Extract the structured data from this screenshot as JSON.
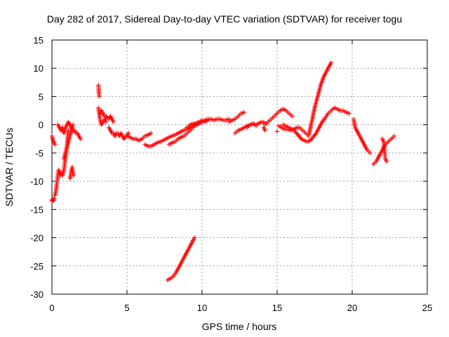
{
  "chart_data": {
    "type": "scatter",
    "title": "Day 282 of 2017, Sidereal Day-to-day VTEC variation (SDTVAR) for receiver togu",
    "xlabel": "GPS time / hours",
    "ylabel": "SDTVAR / TECUs",
    "xlim": [
      0,
      25
    ],
    "ylim": [
      -30,
      15
    ],
    "xticks": [
      0,
      5,
      10,
      15,
      20,
      25
    ],
    "yticks": [
      -30,
      -25,
      -20,
      -15,
      -10,
      -5,
      0,
      5,
      10,
      15
    ],
    "grid": true,
    "marker": "+",
    "color": "#ff0000",
    "series": [
      {
        "name": "SDTVAR",
        "segments": [
          {
            "x": [
              0.0,
              0.1,
              0.2
            ],
            "y": [
              -2.0,
              -3.0,
              -3.5
            ]
          },
          {
            "x": [
              0.0,
              0.05,
              0.1,
              0.15
            ],
            "y": [
              -13.5,
              -13.2,
              -13.5,
              -13.0
            ]
          },
          {
            "x": [
              0.2,
              0.25,
              0.3,
              0.35,
              0.4,
              0.45,
              0.5,
              0.55,
              0.6,
              0.7,
              0.8,
              0.9,
              1.0,
              1.05,
              1.1
            ],
            "y": [
              -12.5,
              -12.0,
              -11.0,
              -10.0,
              -9.0,
              -8.0,
              -8.5,
              -9.0,
              -8.5,
              -9.0,
              -8.0,
              -6.0,
              -4.0,
              -2.0,
              -1.0
            ]
          },
          {
            "x": [
              0.4,
              0.5,
              0.6,
              0.7,
              0.8,
              0.9,
              1.0,
              1.1,
              1.2,
              1.3,
              1.4
            ],
            "y": [
              0.0,
              -0.5,
              -1.0,
              -0.5,
              -1.5,
              -0.5,
              0.0,
              0.5,
              0.0,
              -0.5,
              -1.0
            ]
          },
          {
            "x": [
              0.8,
              0.9,
              1.0,
              1.1,
              1.2,
              1.3,
              1.4
            ],
            "y": [
              -6.0,
              -5.0,
              -4.0,
              -3.0,
              -2.0,
              -1.0,
              0.0
            ]
          },
          {
            "x": [
              1.2,
              1.25,
              1.3,
              1.35,
              1.4,
              1.45
            ],
            "y": [
              -9.5,
              -9.0,
              -8.0,
              -7.5,
              -8.5,
              -9.0
            ]
          },
          {
            "x": [
              1.3,
              1.4,
              1.5,
              1.6,
              1.7,
              1.8,
              1.9
            ],
            "y": [
              -0.5,
              -1.0,
              -1.0,
              -1.5,
              -1.5,
              -2.0,
              -2.5
            ]
          },
          {
            "x": [
              3.1,
              3.12,
              3.15
            ],
            "y": [
              7.0,
              6.0,
              5.0
            ]
          },
          {
            "x": [
              3.1,
              3.2,
              3.3,
              3.4,
              3.5,
              3.6
            ],
            "y": [
              3.0,
              1.0,
              0.0,
              0.5,
              1.0,
              0.5
            ]
          },
          {
            "x": [
              3.2,
              3.3,
              3.4,
              3.5,
              3.6,
              3.7,
              3.8,
              3.9,
              4.0,
              4.1
            ],
            "y": [
              2.0,
              2.5,
              2.0,
              1.5,
              1.5,
              1.2,
              1.0,
              1.5,
              1.0,
              0.5
            ]
          },
          {
            "x": [
              3.8,
              3.9,
              4.0,
              4.1,
              4.2,
              4.3,
              4.4,
              4.5,
              4.6,
              4.7,
              4.8,
              4.9,
              5.0,
              5.1
            ],
            "y": [
              -0.5,
              -1.0,
              -1.5,
              -1.5,
              -2.0,
              -1.5,
              -1.5,
              -2.0,
              -1.5,
              -2.0,
              -2.5,
              -2.0,
              -2.0,
              -1.5
            ]
          },
          {
            "x": [
              5.0,
              5.2,
              5.4,
              5.6,
              5.8,
              6.0,
              6.2,
              6.4,
              6.6
            ],
            "y": [
              -2.0,
              -2.2,
              -2.5,
              -2.5,
              -2.8,
              -2.5,
              -2.0,
              -1.8,
              -1.5
            ]
          },
          {
            "x": [
              6.2,
              6.4,
              6.6,
              6.8,
              7.0,
              7.2,
              7.4,
              7.6,
              7.8,
              8.0,
              8.2,
              8.4,
              8.6,
              8.8,
              9.0,
              9.2,
              9.4,
              9.6
            ],
            "y": [
              -3.5,
              -3.8,
              -3.8,
              -3.5,
              -3.2,
              -3.0,
              -2.8,
              -2.5,
              -2.2,
              -2.0,
              -1.8,
              -1.5,
              -1.2,
              -1.0,
              -0.5,
              0.0,
              0.2,
              0.0
            ]
          },
          {
            "x": [
              7.8,
              8.0,
              8.2,
              8.4,
              8.6,
              8.8,
              9.0,
              9.2,
              9.4
            ],
            "y": [
              -3.5,
              -3.2,
              -3.0,
              -2.5,
              -2.2,
              -2.0,
              -1.5,
              -1.0,
              -0.5
            ]
          },
          {
            "x": [
              7.7,
              7.9,
              8.1,
              8.3,
              8.5,
              8.7,
              8.9,
              9.1,
              9.3,
              9.5
            ],
            "y": [
              -27.5,
              -27.2,
              -26.8,
              -26.0,
              -25.0,
              -24.0,
              -23.0,
              -22.0,
              -21.0,
              -20.0
            ]
          },
          {
            "x": [
              9.0,
              9.2,
              9.4,
              9.6,
              9.8,
              10.0,
              10.2,
              10.4,
              10.6,
              10.8,
              11.0,
              11.2,
              11.4,
              11.6,
              11.8
            ],
            "y": [
              -0.8,
              -0.5,
              -0.3,
              -0.1,
              0.2,
              0.5,
              0.8,
              1.0,
              1.0,
              0.8,
              1.0,
              1.0,
              0.8,
              0.8,
              1.0
            ]
          },
          {
            "x": [
              9.2,
              9.4,
              9.6,
              9.8,
              10.0,
              10.2,
              10.4
            ],
            "y": [
              -0.5,
              0.0,
              0.3,
              0.5,
              0.8,
              0.5,
              0.8
            ]
          },
          {
            "x": [
              11.8,
              12.0,
              12.2,
              12.4,
              12.6,
              12.8
            ],
            "y": [
              0.5,
              0.8,
              1.0,
              1.5,
              2.0,
              2.2
            ]
          },
          {
            "x": [
              12.2,
              12.4,
              12.6,
              12.8,
              13.0,
              13.2,
              13.4,
              13.6,
              13.8,
              14.0,
              14.2
            ],
            "y": [
              -1.5,
              -1.0,
              -0.8,
              -0.5,
              -0.2,
              0.0,
              0.2,
              0.0,
              0.3,
              0.5,
              0.3
            ]
          },
          {
            "x": [
              13.0,
              13.2,
              13.4,
              13.6
            ],
            "y": [
              -0.5,
              0.0,
              0.2,
              -0.2
            ]
          },
          {
            "x": [
              14.1,
              14.2
            ],
            "y": [
              -0.5,
              -1.0
            ]
          },
          {
            "x": [
              14.2,
              14.4,
              14.6,
              14.8,
              15.0,
              15.2,
              15.4,
              15.6,
              15.8,
              16.0
            ],
            "y": [
              0.0,
              0.5,
              1.0,
              1.5,
              2.0,
              2.5,
              2.8,
              2.5,
              2.0,
              1.5
            ]
          },
          {
            "x": [
              15.0
            ],
            "y": [
              -1.2
            ]
          },
          {
            "x": [
              15.1,
              15.3,
              15.5,
              15.7,
              15.9,
              16.1,
              16.3,
              16.5,
              16.7,
              16.9,
              17.1,
              17.3,
              17.5,
              17.7,
              17.9,
              18.1,
              18.3,
              18.5,
              18.6
            ],
            "y": [
              -0.2,
              -0.5,
              -0.8,
              -0.8,
              -1.0,
              -0.8,
              -0.5,
              -0.5,
              -1.0,
              -1.5,
              -2.0,
              0.5,
              3.0,
              5.0,
              7.0,
              8.5,
              9.5,
              10.5,
              11.0
            ]
          },
          {
            "x": [
              15.4,
              15.6,
              15.8,
              16.0,
              16.2,
              16.4,
              16.6,
              16.8,
              17.0,
              17.2,
              17.4,
              17.6,
              17.8,
              18.0,
              18.2,
              18.4,
              18.6,
              18.8,
              19.0,
              19.2,
              19.4,
              19.6,
              19.8
            ],
            "y": [
              0.0,
              -0.3,
              -0.5,
              -0.8,
              -1.2,
              -1.8,
              -2.5,
              -2.8,
              -3.0,
              -2.8,
              -2.2,
              -1.5,
              -0.5,
              0.5,
              1.2,
              2.0,
              2.5,
              3.0,
              2.8,
              2.5,
              2.5,
              2.2,
              2.0
            ]
          },
          {
            "x": [
              20.1,
              20.2,
              20.4,
              20.6,
              20.8,
              21.0,
              21.2
            ],
            "y": [
              1.0,
              -0.5,
              -1.5,
              -2.5,
              -3.5,
              -4.5,
              -5.0
            ]
          },
          {
            "x": [
              21.4,
              21.6,
              21.8,
              22.0,
              22.2,
              22.4,
              22.6,
              22.8
            ],
            "y": [
              -7.0,
              -6.5,
              -5.5,
              -4.5,
              -3.5,
              -3.0,
              -2.5,
              -2.0
            ]
          },
          {
            "x": [
              22.0,
              22.1,
              22.2,
              22.3
            ],
            "y": [
              -2.5,
              -3.0,
              -6.0,
              -6.5
            ]
          }
        ]
      }
    ]
  }
}
